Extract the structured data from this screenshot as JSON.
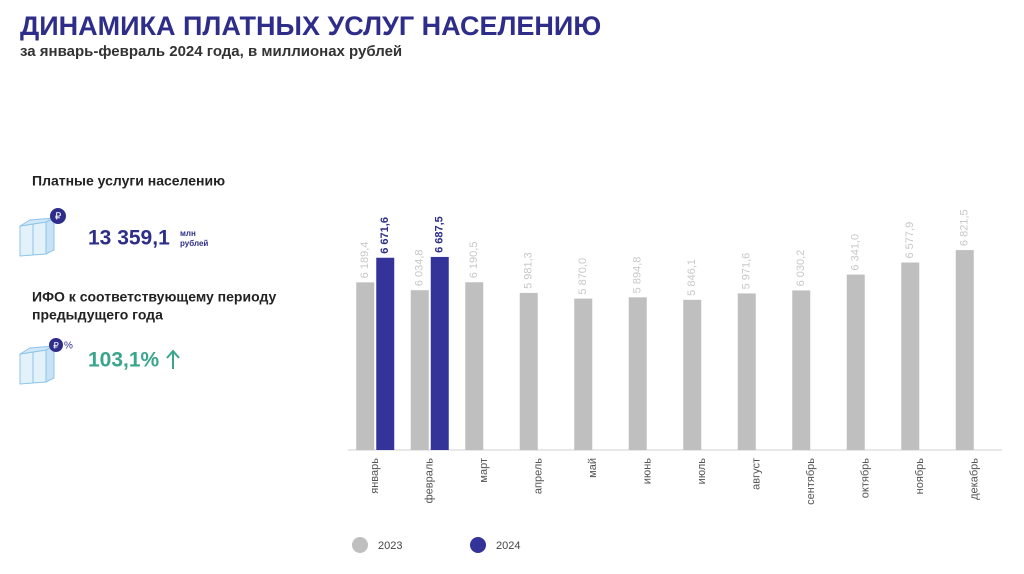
{
  "title": "ДИНАМИКА ПЛАТНЫХ УСЛУГ НАСЕЛЕНИЮ",
  "subtitle": "за январь-февраль 2024 года, в миллионах рублей",
  "kpis": [
    {
      "label": "Платные услуги населению",
      "value": "13 359,1",
      "unit": [
        "млн",
        "рублей"
      ],
      "icon": [
        "₽"
      ]
    },
    {
      "label": [
        "ИФО к соответствующему периоду",
        "предыдущего года"
      ],
      "value": "103,1%",
      "icon": [
        "₽",
        "%"
      ]
    }
  ],
  "chart_data": {
    "type": "bar",
    "categories": [
      "январь",
      "февраль",
      "март",
      "апрель",
      "май",
      "июнь",
      "июль",
      "август",
      "сентябрь",
      "октябрь",
      "ноябрь",
      "декабрь"
    ],
    "series": [
      {
        "name": "2023",
        "color": "#bfbfbf",
        "label_color": "#c8c8c8",
        "values": [
          6189.4,
          6034.8,
          6190.5,
          5981.3,
          5870.0,
          5894.8,
          5846.1,
          5971.6,
          6030.2,
          6341.0,
          6577.9,
          6821.5
        ],
        "value_labels": [
          "6 189,4",
          "6 034,8",
          "6 190,5",
          "5 981,3",
          "5 870,0",
          "5 894,8",
          "5 846,1",
          "5 971,6",
          "6 030,2",
          "6 341,0",
          "6 577,9",
          "6 821,5"
        ]
      },
      {
        "name": "2024",
        "color": "#333399",
        "label_color": "#2e2e8a",
        "values": [
          6671.6,
          6687.5,
          null,
          null,
          null,
          null,
          null,
          null,
          null,
          null,
          null,
          null
        ],
        "value_labels": [
          "6 671,6",
          "6 687,5",
          null,
          null,
          null,
          null,
          null,
          null,
          null,
          null,
          null,
          null
        ]
      }
    ],
    "ylim": [
      2900,
      7000
    ]
  }
}
